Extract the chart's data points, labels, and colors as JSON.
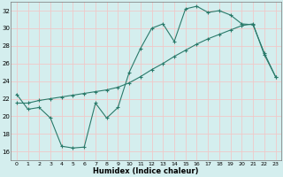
{
  "xlabel": "Humidex (Indice chaleur)",
  "background_color": "#d4eeee",
  "grid_color": "#f0c8c8",
  "line_color": "#2a7a6a",
  "xlim": [
    -0.5,
    23.5
  ],
  "ylim": [
    15,
    33
  ],
  "yticks": [
    16,
    18,
    20,
    22,
    24,
    26,
    28,
    30,
    32
  ],
  "xticks": [
    0,
    1,
    2,
    3,
    4,
    5,
    6,
    7,
    8,
    9,
    10,
    11,
    12,
    13,
    14,
    15,
    16,
    17,
    18,
    19,
    20,
    21,
    22,
    23
  ],
  "curve1_x": [
    0,
    1,
    2,
    3,
    4,
    5,
    6,
    7,
    8,
    9,
    10,
    11,
    12,
    13,
    14,
    15,
    16,
    17,
    18,
    19,
    20,
    21,
    22,
    23
  ],
  "curve1_y": [
    22.5,
    20.8,
    21.0,
    19.8,
    16.6,
    16.4,
    16.5,
    21.5,
    19.8,
    21.0,
    25.0,
    27.7,
    30.0,
    30.5,
    28.5,
    32.2,
    32.5,
    31.8,
    32.0,
    31.5,
    30.5,
    30.4,
    27.2,
    24.5
  ],
  "curve2_x": [
    0,
    1,
    2,
    3,
    4,
    5,
    6,
    7,
    8,
    9,
    10,
    11,
    12,
    13,
    14,
    15,
    16,
    17,
    18,
    19,
    20,
    21,
    22,
    23
  ],
  "curve2_y": [
    21.5,
    21.5,
    21.8,
    22.0,
    22.2,
    22.4,
    22.6,
    22.8,
    23.0,
    23.3,
    23.8,
    24.5,
    25.3,
    26.0,
    26.8,
    27.5,
    28.2,
    28.8,
    29.3,
    29.8,
    30.3,
    30.5,
    27.0,
    24.5
  ],
  "marker": "+",
  "markersize": 3,
  "linewidth": 0.8
}
